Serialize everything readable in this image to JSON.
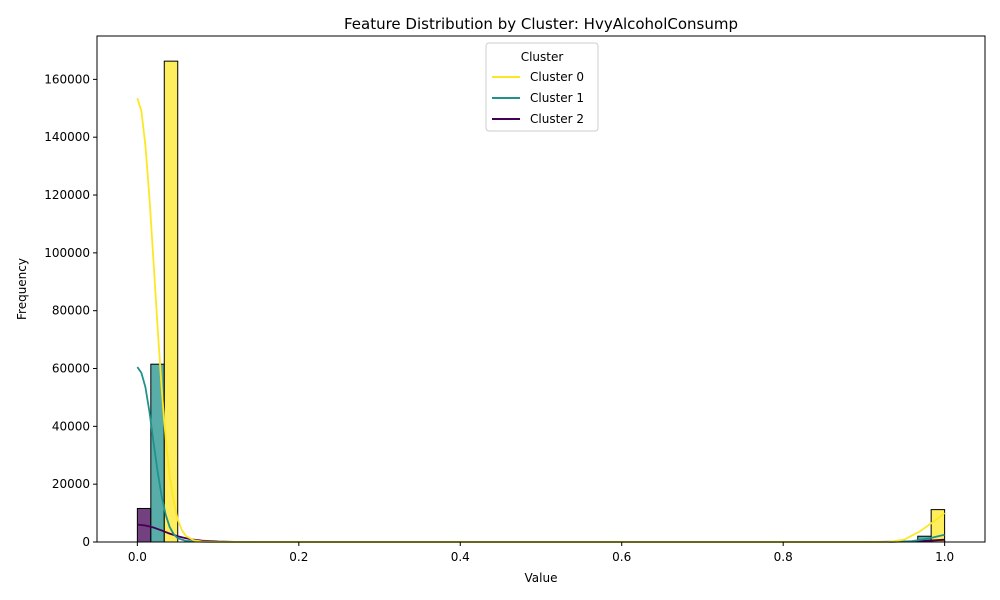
{
  "chart_data": {
    "type": "histogram",
    "title": "Feature Distribution by Cluster: HvyAlcoholConsump",
    "xlabel": "Value",
    "ylabel": "Frequency",
    "xlim": [
      -0.05,
      1.05
    ],
    "ylim": [
      0,
      175000
    ],
    "xticks": [
      0.0,
      0.2,
      0.4,
      0.6,
      0.8,
      1.0
    ],
    "xtick_labels": [
      "0.0",
      "0.2",
      "0.4",
      "0.6",
      "0.8",
      "1.0"
    ],
    "yticks": [
      0,
      20000,
      40000,
      60000,
      80000,
      100000,
      120000,
      140000,
      160000
    ],
    "ytick_labels": [
      "0",
      "20000",
      "40000",
      "60000",
      "80000",
      "100000",
      "120000",
      "140000",
      "160000"
    ],
    "grid": false,
    "legend": {
      "title": "Cluster",
      "placement": "upper center"
    },
    "bin_width": 0.01667,
    "series": [
      {
        "name": "Cluster 2",
        "color": "#440154",
        "bars": [
          {
            "x0": 0.0,
            "value": 11600
          },
          {
            "x0": 0.9833,
            "value": 500
          }
        ],
        "kde": [
          [
            0.0,
            6000
          ],
          [
            0.01,
            5700
          ],
          [
            0.02,
            5000
          ],
          [
            0.03,
            4000
          ],
          [
            0.04,
            2900
          ],
          [
            0.05,
            2000
          ],
          [
            0.06,
            1300
          ],
          [
            0.07,
            800
          ],
          [
            0.08,
            450
          ],
          [
            0.1,
            150
          ],
          [
            0.12,
            40
          ],
          [
            0.15,
            0
          ],
          [
            0.9,
            0
          ],
          [
            0.95,
            120
          ],
          [
            0.98,
            450
          ],
          [
            1.0,
            800
          ]
        ]
      },
      {
        "name": "Cluster 1",
        "color": "#21918c",
        "bars": [
          {
            "x0": 0.01667,
            "value": 61500
          },
          {
            "x0": 0.9667,
            "value": 2000
          }
        ],
        "kde": [
          [
            0.0,
            60500
          ],
          [
            0.005,
            58500
          ],
          [
            0.01,
            53500
          ],
          [
            0.015,
            45000
          ],
          [
            0.02,
            34500
          ],
          [
            0.025,
            24500
          ],
          [
            0.03,
            16000
          ],
          [
            0.035,
            9500
          ],
          [
            0.04,
            5200
          ],
          [
            0.045,
            2700
          ],
          [
            0.05,
            1300
          ],
          [
            0.06,
            400
          ],
          [
            0.08,
            80
          ],
          [
            0.1,
            0
          ],
          [
            0.93,
            0
          ],
          [
            0.96,
            300
          ],
          [
            0.98,
            1200
          ],
          [
            1.0,
            2500
          ]
        ]
      },
      {
        "name": "Cluster 0",
        "color": "#fde725",
        "bars": [
          {
            "x0": 0.03333,
            "value": 166300
          },
          {
            "x0": 0.9833,
            "value": 11200
          }
        ],
        "kde": [
          [
            0.0,
            153500
          ],
          [
            0.005,
            149000
          ],
          [
            0.01,
            137000
          ],
          [
            0.015,
            119000
          ],
          [
            0.02,
            97000
          ],
          [
            0.025,
            74500
          ],
          [
            0.03,
            53500
          ],
          [
            0.035,
            36000
          ],
          [
            0.04,
            23000
          ],
          [
            0.045,
            14000
          ],
          [
            0.05,
            7800
          ],
          [
            0.055,
            4200
          ],
          [
            0.06,
            2100
          ],
          [
            0.07,
            600
          ],
          [
            0.08,
            150
          ],
          [
            0.1,
            0
          ],
          [
            0.93,
            0
          ],
          [
            0.95,
            800
          ],
          [
            0.97,
            3800
          ],
          [
            0.99,
            7800
          ],
          [
            1.0,
            10000
          ]
        ]
      }
    ]
  }
}
